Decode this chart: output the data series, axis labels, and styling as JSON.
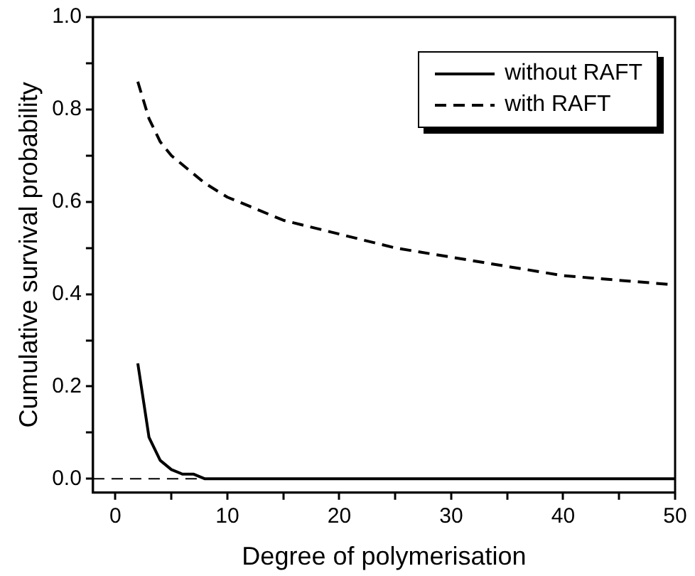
{
  "chart_data": {
    "type": "line",
    "xlabel": "Degree of polymerisation",
    "ylabel": "Cumulative survival probability",
    "xlim": [
      -2,
      50
    ],
    "xticks": [
      0,
      {
        "value": 5,
        "label": null
      },
      10,
      {
        "value": 15,
        "label": null
      },
      20,
      {
        "value": 25,
        "label": null
      },
      30,
      {
        "value": 35,
        "label": null
      },
      40,
      {
        "value": 45,
        "label": null
      },
      50
    ],
    "ylim": [
      -0.03,
      1.0
    ],
    "yticks": [
      {
        "value": 0,
        "label": "0.0"
      },
      {
        "value": 0.1,
        "label": null
      },
      {
        "value": 0.2,
        "label": "0.2"
      },
      {
        "value": 0.3,
        "label": null
      },
      {
        "value": 0.4,
        "label": "0.4"
      },
      {
        "value": 0.5,
        "label": null
      },
      {
        "value": 0.6,
        "label": "0.6"
      },
      {
        "value": 0.7,
        "label": null
      },
      {
        "value": 0.8,
        "label": "0.8"
      },
      {
        "value": 0.9,
        "label": null
      },
      {
        "value": 1.0,
        "label": "1.0"
      }
    ],
    "grid": false,
    "legend": "top right",
    "marker": "none",
    "ref_lines": [
      {
        "axis": "y",
        "value": 0,
        "line_style": "dashed",
        "color": "#000000"
      }
    ],
    "series": [
      {
        "name": "without RAFT",
        "color": "#000000",
        "line_style": "solid",
        "x": [
          2,
          3,
          4,
          5,
          6,
          7,
          8,
          10,
          12,
          15,
          20,
          30,
          40,
          50
        ],
        "values": [
          0.25,
          0.09,
          0.04,
          0.02,
          0.01,
          0.01,
          0.0,
          0.0,
          0.0,
          0.0,
          0.0,
          0.0,
          0.0,
          0.0
        ]
      },
      {
        "name": "with RAFT",
        "color": "#000000",
        "line_style": "dashed",
        "x": [
          2,
          3,
          4,
          5,
          6,
          8,
          10,
          12,
          15,
          20,
          25,
          30,
          35,
          40,
          45,
          50
        ],
        "values": [
          0.86,
          0.78,
          0.73,
          0.7,
          0.68,
          0.64,
          0.61,
          0.59,
          0.56,
          0.53,
          0.5,
          0.48,
          0.46,
          0.44,
          0.43,
          0.42
        ]
      }
    ]
  }
}
